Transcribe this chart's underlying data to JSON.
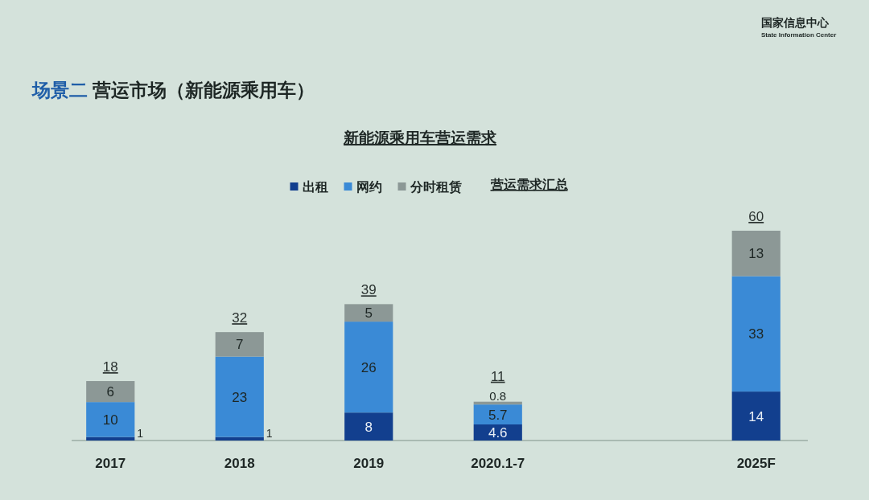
{
  "chart_data": {
    "type": "bar",
    "title": "场景二 营运市场（新能源乘用车）",
    "subtitle": "新能源乘用车营运需求",
    "categories": [
      "2017",
      "2018",
      "2019",
      "2020.1-7",
      null,
      "2025F"
    ],
    "series": [
      {
        "name": "出租",
        "color": "#123f8e",
        "values": [
          1,
          1,
          8,
          4.6,
          null,
          14
        ]
      },
      {
        "name": "网约",
        "color": "#3a8ad6",
        "values": [
          10,
          23,
          26,
          5.7,
          null,
          33
        ]
      },
      {
        "name": "分时租赁",
        "color": "#8c9896",
        "values": [
          6,
          7,
          5,
          0.8,
          null,
          13
        ]
      }
    ],
    "stacked": true,
    "data_labels": true,
    "totals": [
      "18",
      "32",
      "39",
      "11",
      null,
      "60"
    ],
    "legend": "top",
    "annotations": [
      "营运需求汇总",
      "国家信息中心",
      "State Information Center"
    ]
  }
}
